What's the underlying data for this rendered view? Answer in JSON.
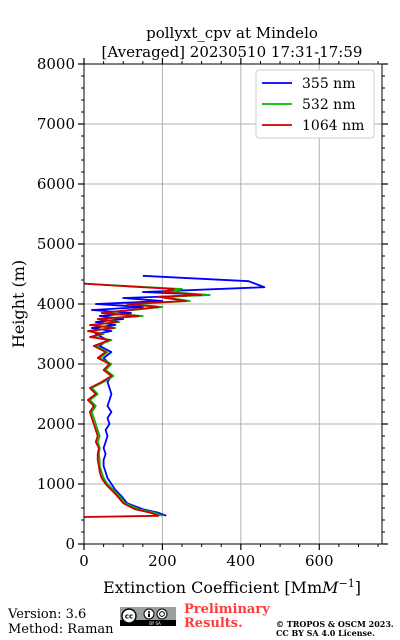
{
  "chart_data": {
    "type": "line",
    "title_line1": "pollyxt_cpv at Mindelo",
    "title_line2": "[Averaged] 20230510 17:31-17:59",
    "xlabel": "Extinction Coefficient [Mm",
    "xlabel_sup": "−1",
    "xlabel_end": "]",
    "ylabel": "Height (m)",
    "xlim": [
      0,
      760
    ],
    "ylim": [
      0,
      8000
    ],
    "xticks": [
      0,
      200,
      400,
      600
    ],
    "yticks": [
      0,
      1000,
      2000,
      3000,
      4000,
      5000,
      6000,
      7000,
      8000
    ],
    "grid": true,
    "legend_position": "top-right",
    "series": [
      {
        "name": "355 nm",
        "color": "#0000ff",
        "points": [
          [
            210,
            470
          ],
          [
            190,
            520
          ],
          [
            150,
            580
          ],
          [
            110,
            680
          ],
          [
            95,
            800
          ],
          [
            80,
            900
          ],
          [
            70,
            1000
          ],
          [
            60,
            1100
          ],
          [
            55,
            1200
          ],
          [
            50,
            1300
          ],
          [
            50,
            1400
          ],
          [
            55,
            1500
          ],
          [
            50,
            1600
          ],
          [
            55,
            1700
          ],
          [
            60,
            1800
          ],
          [
            55,
            1900
          ],
          [
            65,
            2000
          ],
          [
            60,
            2100
          ],
          [
            70,
            2200
          ],
          [
            60,
            2300
          ],
          [
            65,
            2400
          ],
          [
            70,
            2500
          ],
          [
            65,
            2600
          ],
          [
            60,
            2700
          ],
          [
            70,
            2800
          ],
          [
            55,
            2900
          ],
          [
            65,
            3000
          ],
          [
            50,
            3100
          ],
          [
            70,
            3200
          ],
          [
            40,
            3300
          ],
          [
            60,
            3400
          ],
          [
            30,
            3500
          ],
          [
            70,
            3550
          ],
          [
            20,
            3600
          ],
          [
            80,
            3650
          ],
          [
            30,
            3700
          ],
          [
            100,
            3750
          ],
          [
            40,
            3800
          ],
          [
            120,
            3850
          ],
          [
            20,
            3900
          ],
          [
            150,
            3950
          ],
          [
            30,
            4000
          ],
          [
            200,
            4050
          ],
          [
            100,
            4100
          ],
          [
            320,
            4150
          ],
          [
            150,
            4200
          ],
          [
            460,
            4280
          ],
          [
            420,
            4380
          ],
          [
            300,
            4420
          ],
          [
            150,
            4470
          ]
        ]
      },
      {
        "name": "532 nm",
        "color": "#00bb00",
        "points": [
          [
            200,
            470
          ],
          [
            180,
            520
          ],
          [
            140,
            580
          ],
          [
            105,
            680
          ],
          [
            90,
            800
          ],
          [
            75,
            900
          ],
          [
            60,
            1000
          ],
          [
            50,
            1100
          ],
          [
            45,
            1200
          ],
          [
            40,
            1300
          ],
          [
            40,
            1400
          ],
          [
            38,
            1500
          ],
          [
            40,
            1600
          ],
          [
            35,
            1700
          ],
          [
            40,
            1800
          ],
          [
            35,
            1900
          ],
          [
            30,
            2000
          ],
          [
            25,
            2100
          ],
          [
            20,
            2200
          ],
          [
            30,
            2300
          ],
          [
            15,
            2400
          ],
          [
            35,
            2500
          ],
          [
            20,
            2600
          ],
          [
            50,
            2700
          ],
          [
            75,
            2800
          ],
          [
            55,
            2900
          ],
          [
            70,
            3000
          ],
          [
            40,
            3100
          ],
          [
            60,
            3200
          ],
          [
            30,
            3300
          ],
          [
            70,
            3400
          ],
          [
            20,
            3450
          ],
          [
            50,
            3500
          ],
          [
            15,
            3550
          ],
          [
            80,
            3600
          ],
          [
            20,
            3650
          ],
          [
            90,
            3700
          ],
          [
            40,
            3750
          ],
          [
            150,
            3800
          ],
          [
            50,
            3850
          ],
          [
            200,
            3950
          ],
          [
            120,
            4000
          ],
          [
            270,
            4050
          ],
          [
            200,
            4120
          ],
          [
            320,
            4150
          ],
          [
            220,
            4200
          ],
          [
            250,
            4250
          ],
          [
            80,
            4310
          ],
          [
            0,
            4340
          ]
        ]
      },
      {
        "name": "1064 nm",
        "color": "#cc0000",
        "points": [
          [
            0,
            450
          ],
          [
            190,
            470
          ],
          [
            170,
            520
          ],
          [
            130,
            580
          ],
          [
            100,
            680
          ],
          [
            85,
            800
          ],
          [
            70,
            900
          ],
          [
            55,
            1000
          ],
          [
            45,
            1100
          ],
          [
            40,
            1200
          ],
          [
            38,
            1300
          ],
          [
            35,
            1400
          ],
          [
            35,
            1500
          ],
          [
            38,
            1600
          ],
          [
            30,
            1700
          ],
          [
            35,
            1800
          ],
          [
            30,
            1900
          ],
          [
            25,
            2000
          ],
          [
            20,
            2100
          ],
          [
            15,
            2200
          ],
          [
            25,
            2300
          ],
          [
            10,
            2400
          ],
          [
            30,
            2500
          ],
          [
            15,
            2600
          ],
          [
            45,
            2700
          ],
          [
            70,
            2800
          ],
          [
            50,
            2900
          ],
          [
            65,
            3000
          ],
          [
            35,
            3100
          ],
          [
            55,
            3200
          ],
          [
            25,
            3300
          ],
          [
            65,
            3400
          ],
          [
            15,
            3450
          ],
          [
            45,
            3500
          ],
          [
            10,
            3550
          ],
          [
            75,
            3600
          ],
          [
            15,
            3650
          ],
          [
            85,
            3700
          ],
          [
            35,
            3750
          ],
          [
            140,
            3800
          ],
          [
            45,
            3850
          ],
          [
            190,
            3950
          ],
          [
            110,
            4000
          ],
          [
            260,
            4050
          ],
          [
            190,
            4120
          ],
          [
            300,
            4150
          ],
          [
            200,
            4200
          ],
          [
            230,
            4250
          ],
          [
            70,
            4310
          ],
          [
            0,
            4340
          ]
        ]
      }
    ]
  },
  "footer": {
    "version": "Version: 3.6",
    "method": "Method: Raman",
    "preliminary_line1": "Preliminary",
    "preliminary_line2": "Results.",
    "copyright_line1": "© TROPOS & OSCM 2023.",
    "copyright_line2": "CC BY SA 4.0 License.",
    "license_badge_text": "BY SA"
  }
}
